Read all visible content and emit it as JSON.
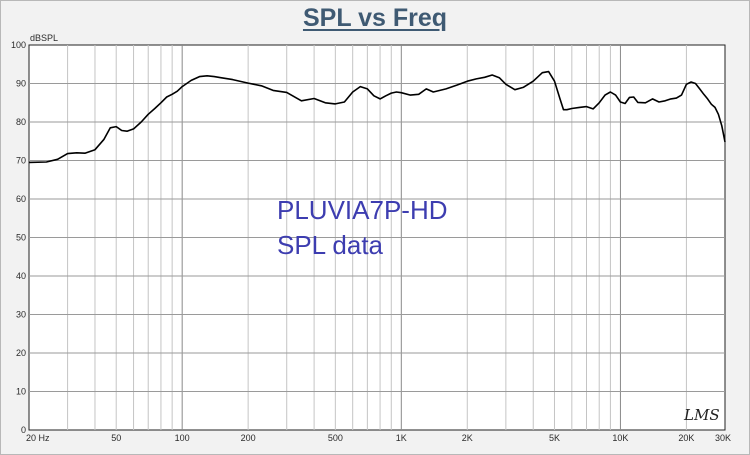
{
  "chart_data": {
    "type": "line",
    "title": "SPL vs Freq",
    "ylabel": "dBSPL",
    "xlabel": "",
    "xscale": "log",
    "xlim": [
      20,
      30000
    ],
    "ylim": [
      0,
      100
    ],
    "grid": true,
    "y_ticks": [
      "0",
      "10",
      "20",
      "30",
      "40",
      "50",
      "60",
      "70",
      "80",
      "90",
      "100"
    ],
    "x_ticks": [
      {
        "value": 20,
        "label": "20 Hz"
      },
      {
        "value": 50,
        "label": "50"
      },
      {
        "value": 100,
        "label": "100"
      },
      {
        "value": 200,
        "label": "200"
      },
      {
        "value": 500,
        "label": "500"
      },
      {
        "value": 1000,
        "label": "1K"
      },
      {
        "value": 2000,
        "label": "2K"
      },
      {
        "value": 5000,
        "label": "5K"
      },
      {
        "value": 10000,
        "label": "10K"
      },
      {
        "value": 20000,
        "label": "20K"
      },
      {
        "value": 30000,
        "label": "30K"
      }
    ],
    "annotation": [
      "PLUVIA7P-HD",
      "SPL data"
    ],
    "logo": "LMS",
    "line_color": "#000000",
    "annotation_color": "#3d3db0",
    "title_color": "#3f5a73",
    "series": [
      {
        "x": [
          20,
          24,
          27,
          30,
          33,
          36,
          40,
          44,
          47,
          50,
          53,
          56,
          60,
          65,
          70,
          75,
          80,
          85,
          90,
          95,
          100,
          110,
          120,
          130,
          140,
          150,
          170,
          200,
          230,
          260,
          300,
          350,
          400,
          450,
          500,
          550,
          600,
          650,
          700,
          750,
          800,
          850,
          900,
          950,
          1000,
          1100,
          1200,
          1300,
          1400,
          1500,
          1600,
          1800,
          2000,
          2200,
          2400,
          2600,
          2800,
          3000,
          3300,
          3600,
          4000,
          4400,
          4700,
          5000,
          5300,
          5500,
          5700,
          6000,
          6500,
          7000,
          7500,
          8000,
          8500,
          9000,
          9500,
          10000,
          10500,
          11000,
          11500,
          12000,
          13000,
          14000,
          15000,
          16000,
          17000,
          18000,
          19000,
          20000,
          21000,
          22000,
          23000,
          24000,
          25000,
          26000,
          27000,
          28000,
          29000,
          30000
        ],
        "y": [
          69.5,
          69.6,
          70.3,
          71.8,
          72.0,
          71.9,
          72.8,
          75.5,
          78.5,
          78.8,
          77.8,
          77.6,
          78.2,
          80.0,
          82.0,
          83.5,
          85.0,
          86.5,
          87.2,
          88.0,
          89.2,
          90.8,
          91.8,
          92.0,
          91.8,
          91.5,
          91.0,
          90.1,
          89.4,
          88.2,
          87.7,
          85.5,
          86.1,
          85.0,
          84.7,
          85.2,
          87.8,
          89.2,
          88.6,
          86.8,
          86.0,
          86.8,
          87.5,
          87.8,
          87.6,
          87.0,
          87.2,
          88.6,
          87.8,
          88.2,
          88.6,
          89.6,
          90.6,
          91.2,
          91.6,
          92.2,
          91.5,
          89.8,
          88.4,
          89.0,
          90.6,
          92.8,
          93.1,
          90.6,
          86.0,
          83.2,
          83.2,
          83.5,
          83.8,
          84.0,
          83.4,
          85.0,
          87.0,
          87.8,
          87.0,
          85.2,
          84.8,
          86.4,
          86.5,
          85.1,
          85.0,
          86.0,
          85.2,
          85.5,
          86.0,
          86.2,
          87.0,
          89.8,
          90.4,
          90.0,
          88.6,
          87.2,
          86.0,
          84.6,
          83.8,
          82.0,
          79.0,
          74.8
        ]
      }
    ]
  }
}
